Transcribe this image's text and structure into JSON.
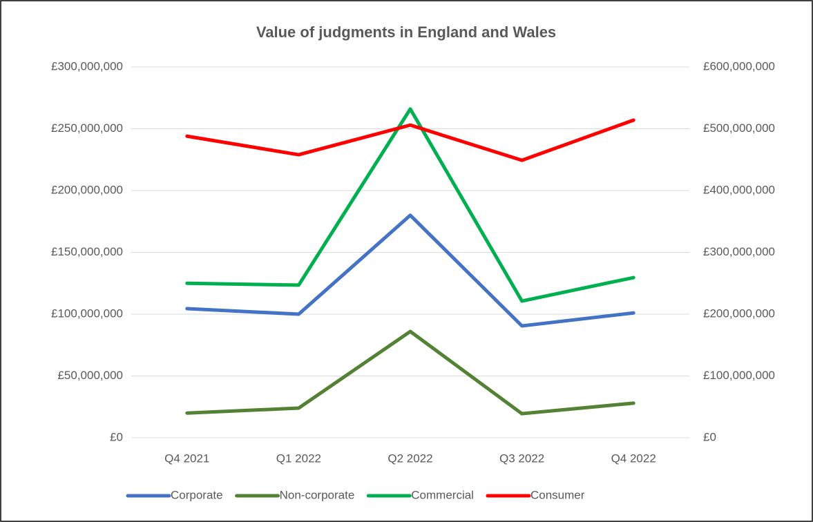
{
  "chart_data": {
    "type": "line",
    "title": "Value of judgments in England and Wales",
    "categories": [
      "Q4 2021",
      "Q1 2022",
      "Q2 2022",
      "Q3 2022",
      "Q4 2022"
    ],
    "series": [
      {
        "name": "Corporate",
        "color": "#4472c4",
        "values": [
          104500000,
          100000000,
          180000000,
          90500000,
          101000000
        ]
      },
      {
        "name": "Non-corporate",
        "color": "#548235",
        "values": [
          20000000,
          24000000,
          86000000,
          19500000,
          28000000
        ]
      },
      {
        "name": "Commercial",
        "color": "#00b050",
        "values": [
          125000000,
          123500000,
          266000000,
          110600000,
          129600000
        ]
      },
      {
        "name": "Consumer",
        "color": "#ff0000",
        "axis": "y2",
        "values": [
          488000000,
          458000000,
          506000000,
          449000000,
          514000000
        ]
      }
    ],
    "ylim": [
      0,
      300000000
    ],
    "yticks": [
      {
        "value": 0,
        "label": "£0"
      },
      {
        "value": 50000000,
        "label": "£50,000,000"
      },
      {
        "value": 100000000,
        "label": "£100,000,000"
      },
      {
        "value": 150000000,
        "label": "£150,000,000"
      },
      {
        "value": 200000000,
        "label": "£200,000,000"
      },
      {
        "value": 250000000,
        "label": "£250,000,000"
      },
      {
        "value": 300000000,
        "label": "£300,000,000"
      }
    ],
    "y2lim": [
      0,
      600000000
    ],
    "y2ticks": [
      {
        "value": 0,
        "label": "£0"
      },
      {
        "value": 100000000,
        "label": "£100,000,000"
      },
      {
        "value": 200000000,
        "label": "£200,000,000"
      },
      {
        "value": 300000000,
        "label": "£300,000,000"
      },
      {
        "value": 400000000,
        "label": "£400,000,000"
      },
      {
        "value": 500000000,
        "label": "£500,000,000"
      },
      {
        "value": 600000000,
        "label": "£600,000,000"
      }
    ],
    "grid": true,
    "legend": "bottom"
  }
}
